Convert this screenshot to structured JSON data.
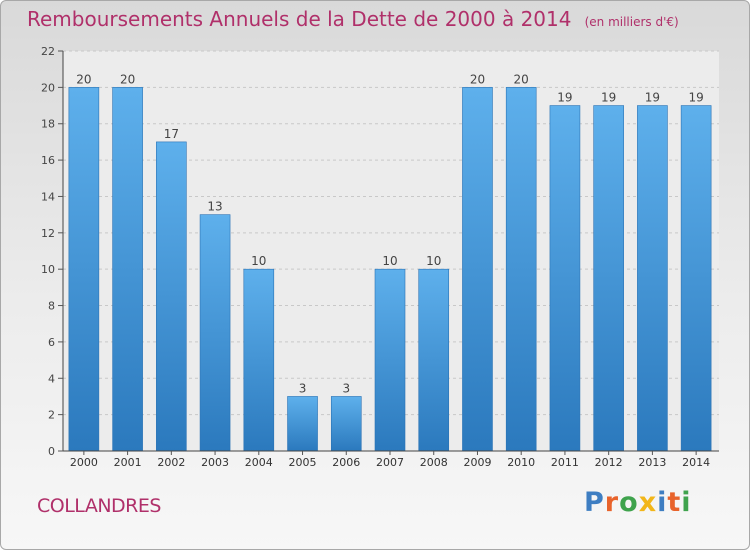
{
  "header": {
    "title": "Remboursements Annuels de la Dette de 2000 à 2014",
    "subtitle": "(en milliers d'€)"
  },
  "footer": {
    "commune": "COLLANDRES",
    "logo_text": "Proxiti",
    "logo_colors": [
      "#3e7ec2",
      "#e8632b",
      "#3fa34d",
      "#f2b619",
      "#3e7ec2",
      "#e8632b",
      "#3fa34d"
    ]
  },
  "chart_data": {
    "type": "bar",
    "categories": [
      "2000",
      "2001",
      "2002",
      "2003",
      "2004",
      "2005",
      "2006",
      "2007",
      "2008",
      "2009",
      "2010",
      "2011",
      "2012",
      "2013",
      "2014"
    ],
    "values": [
      20,
      20,
      17,
      13,
      10,
      3,
      3,
      10,
      10,
      20,
      20,
      19,
      19,
      19,
      19
    ],
    "data_labels": [
      "20",
      "20",
      "17",
      "13",
      "10",
      "3",
      "3",
      "10",
      "10",
      "20",
      "20",
      "19",
      "19",
      "19",
      "19"
    ],
    "title": "Remboursements Annuels de la Dette de 2000 à 2014",
    "ylim": [
      0,
      22
    ],
    "yticks": [
      0,
      2,
      4,
      6,
      8,
      10,
      12,
      14,
      16,
      18,
      20,
      22
    ],
    "grid": true,
    "bar_color": "#3d8fd4",
    "bar_color_light": "#5eb0ec"
  }
}
